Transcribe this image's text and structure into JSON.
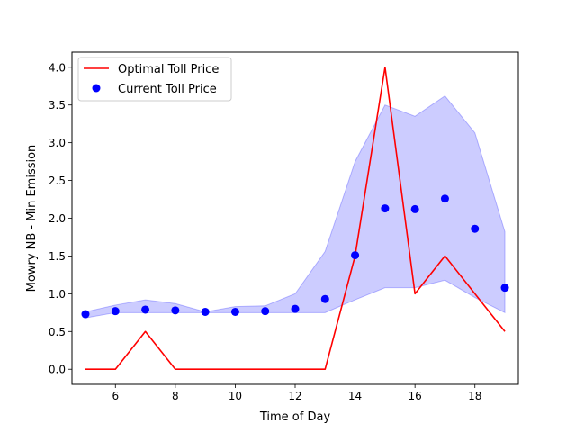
{
  "chart_data": {
    "type": "line",
    "xlabel": "Time of Day",
    "ylabel": "Mowry NB - Min Emission",
    "xlim": [
      4.55,
      19.45
    ],
    "ylim": [
      -0.2,
      4.2
    ],
    "xticks": [
      6,
      8,
      10,
      12,
      14,
      16,
      18
    ],
    "yticks": [
      0.0,
      0.5,
      1.0,
      1.5,
      2.0,
      2.5,
      3.0,
      3.5,
      4.0
    ],
    "ytick_labels": [
      "0.0",
      "0.5",
      "1.0",
      "1.5",
      "2.0",
      "2.5",
      "3.0",
      "3.5",
      "4.0"
    ],
    "x": [
      5,
      6,
      7,
      8,
      9,
      10,
      11,
      12,
      13,
      14,
      15,
      16,
      17,
      18,
      19
    ],
    "series": [
      {
        "name": "Optimal Toll Price",
        "kind": "line",
        "color": "#ff0000",
        "values": [
          0,
          0,
          0.5,
          0,
          0,
          0,
          0,
          0,
          0,
          1.5,
          4.0,
          1.0,
          1.5,
          1.0,
          0.5
        ]
      },
      {
        "name": "Current Toll Price",
        "kind": "scatter",
        "color": "#0000ff",
        "values": [
          0.73,
          0.77,
          0.79,
          0.78,
          0.76,
          0.76,
          0.77,
          0.8,
          0.93,
          1.51,
          2.13,
          2.12,
          2.26,
          1.86,
          1.08
        ]
      }
    ],
    "band": {
      "color": "#0000ff",
      "lower": [
        0.68,
        0.75,
        0.75,
        0.75,
        0.75,
        0.75,
        0.75,
        0.75,
        0.75,
        0.92,
        1.08,
        1.08,
        1.18,
        0.95,
        0.75
      ],
      "upper": [
        0.76,
        0.85,
        0.92,
        0.87,
        0.76,
        0.83,
        0.84,
        1.0,
        1.56,
        2.75,
        3.5,
        3.35,
        3.62,
        3.13,
        1.82
      ]
    },
    "legend_position": "top-left",
    "grid": false
  }
}
